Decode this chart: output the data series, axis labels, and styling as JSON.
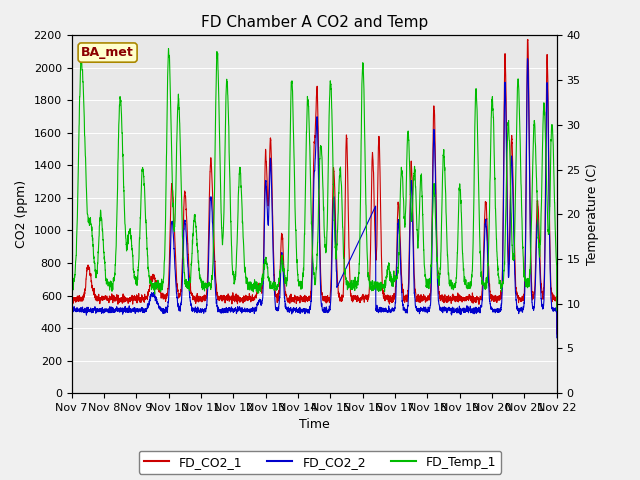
{
  "title": "FD Chamber A CO2 and Temp",
  "xlabel": "Time",
  "ylabel_left": "CO2 (ppm)",
  "ylabel_right": "Temperature (C)",
  "ylim_left": [
    0,
    2200
  ],
  "ylim_right": [
    0,
    40
  ],
  "ba_met_label": "BA_met",
  "bg_color": "#f0f0f0",
  "plot_bg_color": "#e8e8e8",
  "legend_entries": [
    "FD_CO2_1",
    "FD_CO2_2",
    "FD_Temp_1"
  ],
  "legend_colors": [
    "#cc0000",
    "#0000cc",
    "#00bb00"
  ],
  "color_co2_1": "#cc0000",
  "color_co2_2": "#0000cc",
  "color_temp": "#00bb00",
  "title_fontsize": 11,
  "axis_fontsize": 9,
  "tick_fontsize": 8,
  "x_labels": [
    "Nov 7",
    "Nov 8",
    "Nov 9",
    "Nov 10",
    "Nov 11",
    "Nov 12",
    "Nov 13",
    "Nov 14",
    "Nov 15",
    "Nov 16",
    "Nov 17",
    "Nov 18",
    "Nov 19",
    "Nov 20",
    "Nov 21",
    "Nov 22"
  ],
  "yticks_left": [
    0,
    200,
    400,
    600,
    800,
    1000,
    1200,
    1400,
    1600,
    1800,
    2000,
    2200
  ],
  "yticks_right": [
    0,
    5,
    10,
    15,
    20,
    25,
    30,
    35,
    40
  ]
}
